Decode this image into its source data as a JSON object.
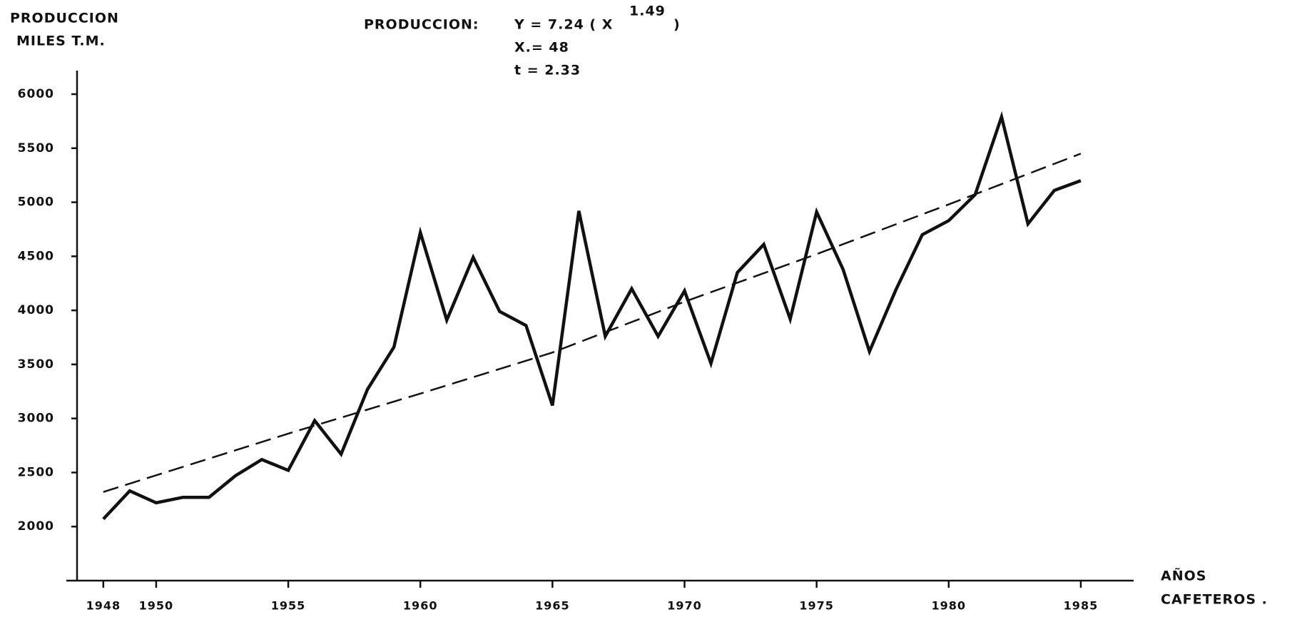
{
  "chart_data": {
    "type": "line",
    "y_label": [
      "PRODUCCION",
      "MILES T.M."
    ],
    "x_label": [
      "AÑOS",
      "CAFETEROS ."
    ],
    "annotation": {
      "lead": "PRODUCCION:",
      "formula": "Y = 7.24 ( X",
      "exponent": "1.49",
      "close": ")",
      "x_line": "X.= 48",
      "t_line": "t = 2.33"
    },
    "x": [
      1948,
      1949,
      1950,
      1951,
      1952,
      1953,
      1954,
      1955,
      1956,
      1957,
      1958,
      1959,
      1960,
      1961,
      1962,
      1963,
      1964,
      1965,
      1966,
      1967,
      1968,
      1969,
      1970,
      1971,
      1972,
      1973,
      1974,
      1975,
      1976,
      1977,
      1978,
      1979,
      1980,
      1981,
      1982,
      1983,
      1984,
      1985
    ],
    "series": [
      {
        "color": "#111111",
        "dashed": false,
        "values": [
          2070,
          2330,
          2220,
          2270,
          2270,
          2470,
          2620,
          2520,
          2980,
          2670,
          3270,
          3660,
          4720,
          3910,
          4490,
          3990,
          3860,
          3120,
          4920,
          3760,
          4200,
          3760,
          4180,
          3510,
          4350,
          4610,
          3920,
          4910,
          4380,
          3620,
          4190,
          4700,
          4830,
          5070,
          5790,
          4800,
          5110,
          5200
        ]
      },
      {
        "color": "#111111",
        "dashed": true,
        "x": [
          1948,
          1955,
          1960,
          1965,
          1970,
          1975,
          1980,
          1985
        ],
        "values": [
          2320,
          2860,
          3230,
          3610,
          4080,
          4520,
          4980,
          5450
        ]
      }
    ],
    "xlim": [
      1946.6,
      1987
    ],
    "ylim": [
      1500,
      6000
    ],
    "xticks": [
      1948,
      1950,
      1955,
      1960,
      1965,
      1970,
      1975,
      1980,
      1985
    ],
    "yticks": [
      2000,
      2500,
      3000,
      3500,
      4000,
      4500,
      5000,
      5500,
      6000
    ],
    "grid": false
  }
}
